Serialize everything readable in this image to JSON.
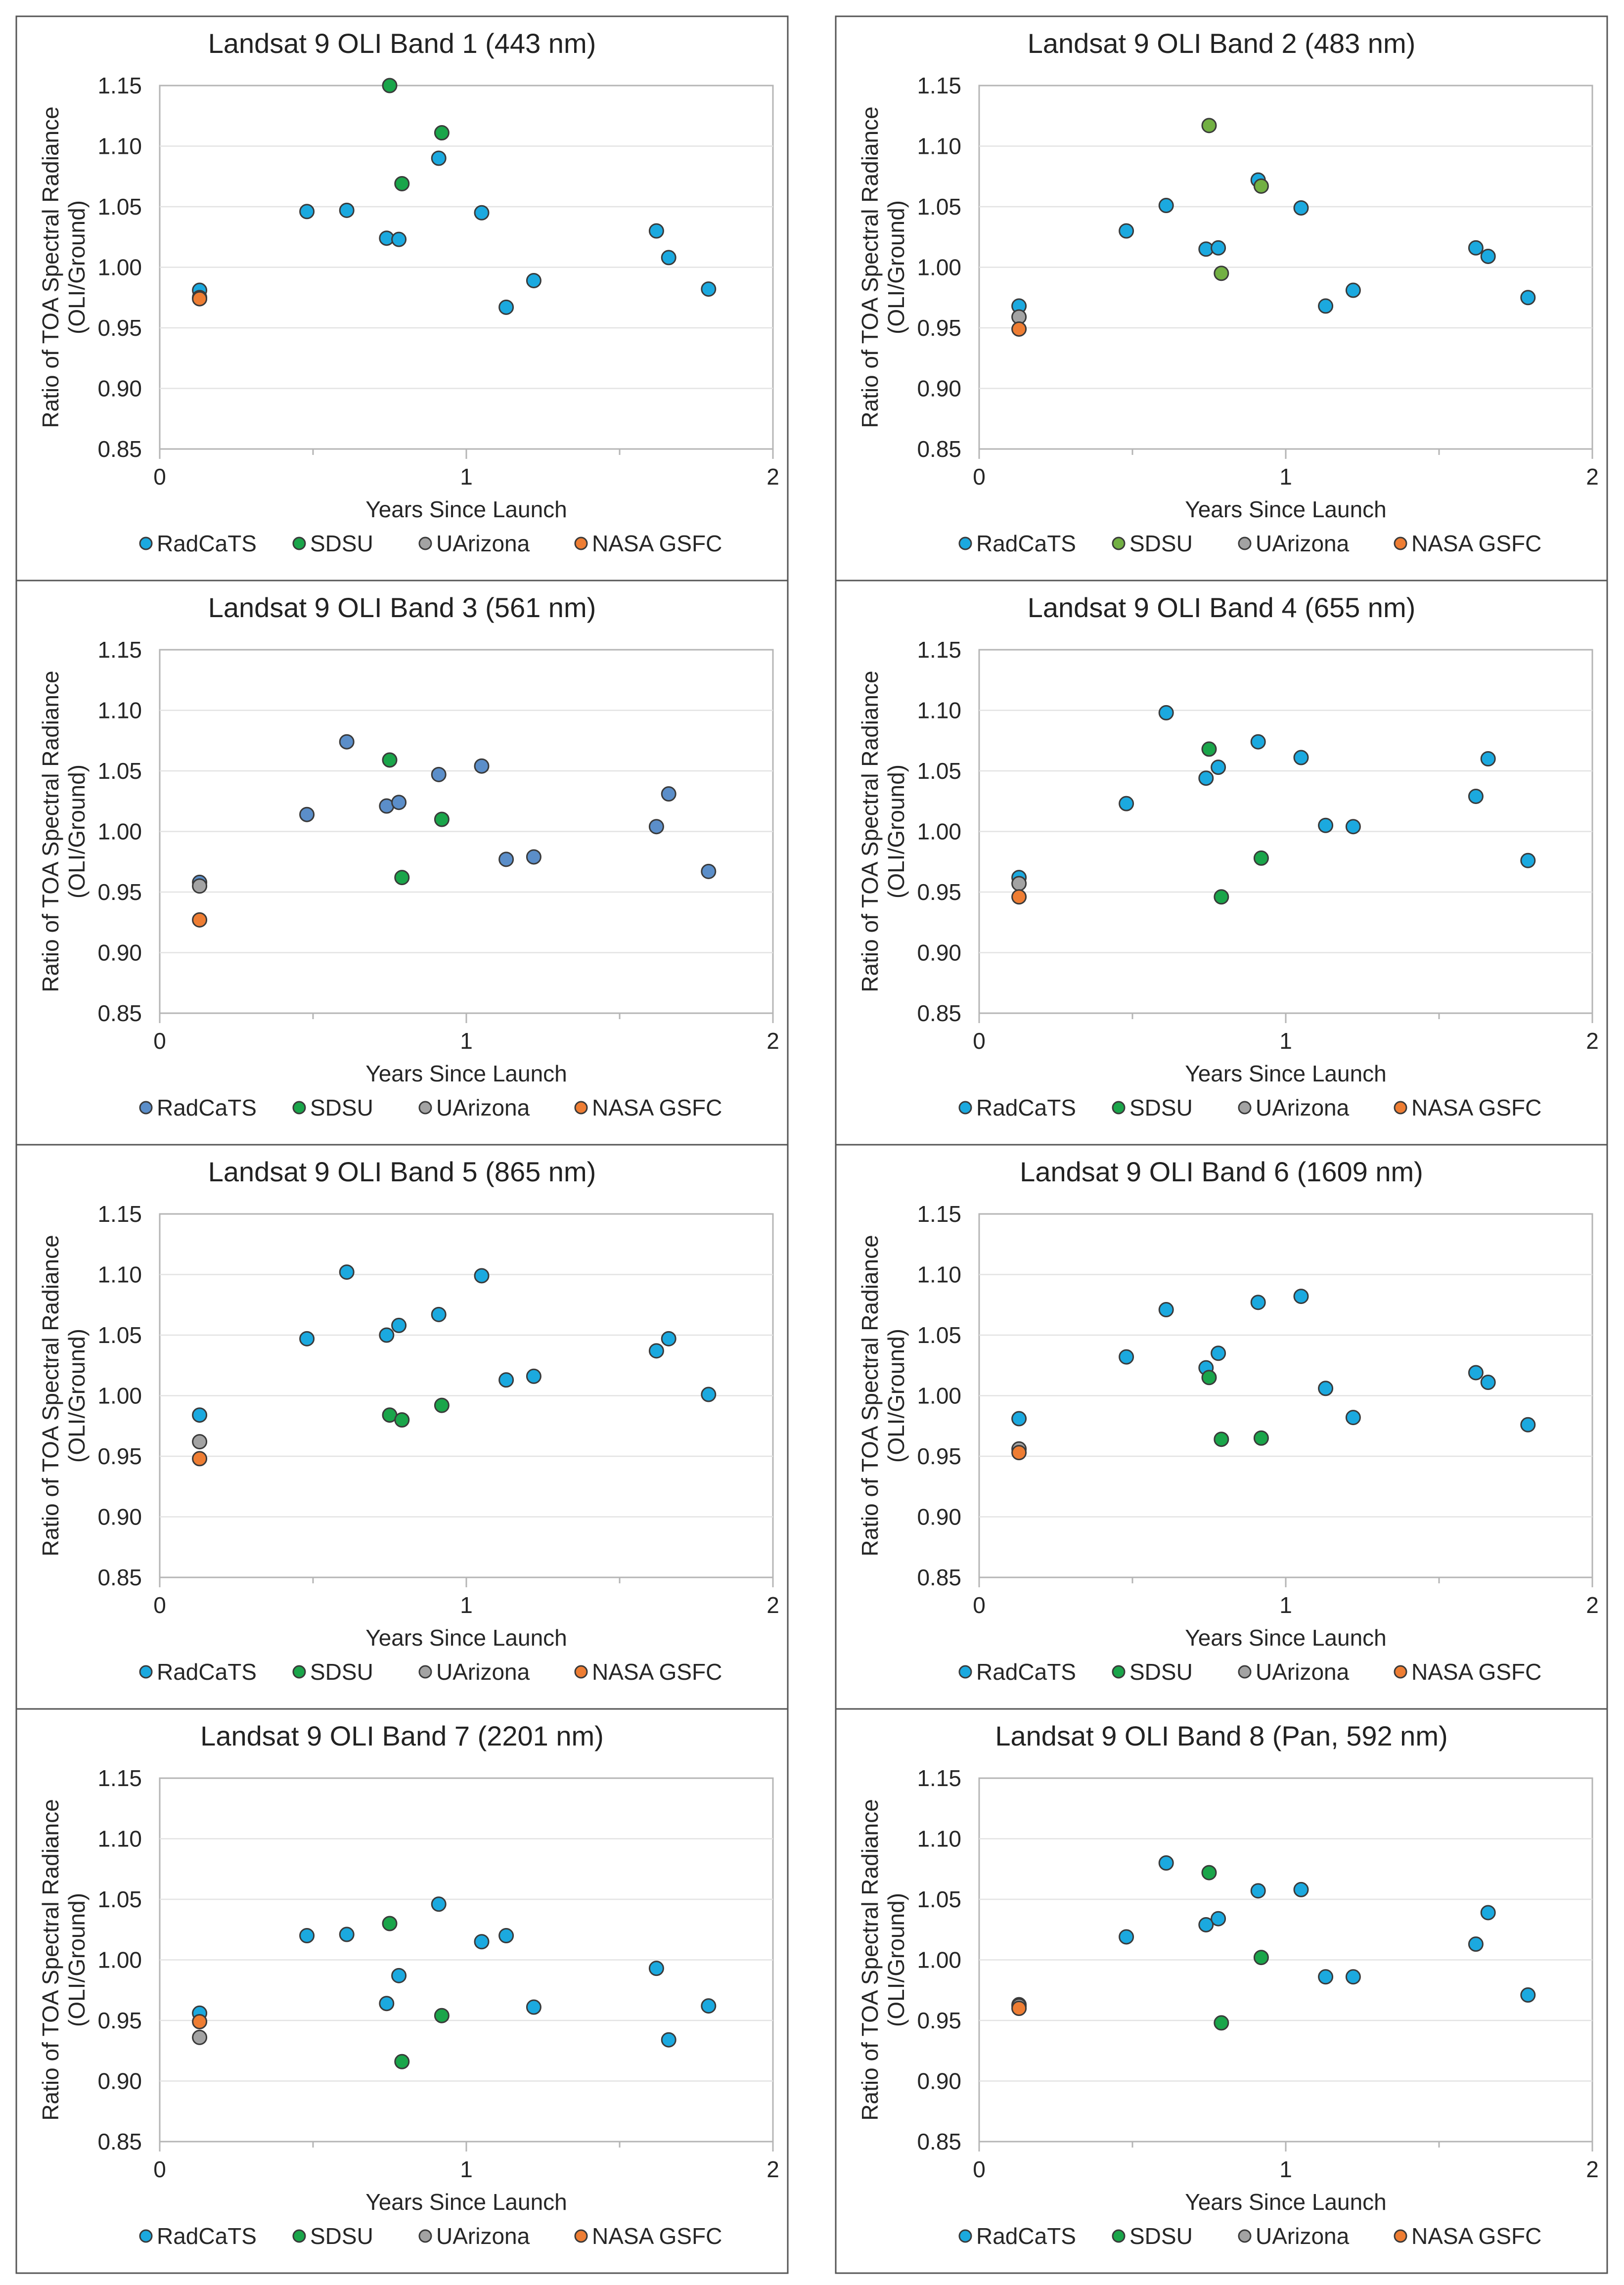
{
  "colors": {
    "RadCaTS": "#1ba9df",
    "RadCaTS_band3": "#5b8ec9",
    "SDSU": "#1aa54a",
    "SDSU_band2": "#72b043",
    "UArizona": "#a3a3a3",
    "NASA GSFC": "#ee7d33"
  },
  "chart_data": [
    {
      "type": "scatter",
      "title": "Landsat 9 OLI Band 1 (443 nm)",
      "xlabel": "Years Since Launch",
      "ylabel": [
        "Ratio of TOA Spectral Radiance",
        "(OLI/Ground)"
      ],
      "xlim": [
        0,
        2
      ],
      "ylim": [
        0.85,
        1.15
      ],
      "x_ticks": [
        "0",
        "1",
        "2"
      ],
      "y_ticks": [
        "0.85",
        "0.90",
        "0.95",
        "1.00",
        "1.05",
        "1.10",
        "1.15"
      ],
      "grid": "horizontal",
      "legend_position": "bottom",
      "series": [
        {
          "name": "RadCaTS",
          "points": [
            [
              0.13,
              0.981
            ],
            [
              0.48,
              1.046
            ],
            [
              0.61,
              1.047
            ],
            [
              0.74,
              1.024
            ],
            [
              0.78,
              1.023
            ],
            [
              0.91,
              1.09
            ],
            [
              1.05,
              1.045
            ],
            [
              1.13,
              0.967
            ],
            [
              1.22,
              0.989
            ],
            [
              1.62,
              1.03
            ],
            [
              1.66,
              1.008
            ],
            [
              1.79,
              0.982
            ]
          ]
        },
        {
          "name": "SDSU",
          "points": [
            [
              0.75,
              1.15
            ],
            [
              0.79,
              1.069
            ],
            [
              0.92,
              1.111
            ]
          ]
        },
        {
          "name": "UArizona",
          "points": [
            [
              0.13,
              0.975
            ]
          ]
        },
        {
          "name": "NASA GSFC",
          "points": [
            [
              0.13,
              0.974
            ]
          ]
        }
      ]
    },
    {
      "type": "scatter",
      "title": "Landsat 9 OLI Band 2 (483 nm)",
      "xlabel": "Years Since Launch",
      "ylabel": [
        "Ratio of TOA Spectral Radiance",
        "(OLI/Ground)"
      ],
      "xlim": [
        0,
        2
      ],
      "ylim": [
        0.85,
        1.15
      ],
      "x_ticks": [
        "0",
        "1",
        "2"
      ],
      "y_ticks": [
        "0.85",
        "0.90",
        "0.95",
        "1.00",
        "1.05",
        "1.10",
        "1.15"
      ],
      "grid": "horizontal",
      "legend_position": "bottom",
      "series": [
        {
          "name": "RadCaTS",
          "points": [
            [
              0.13,
              0.968
            ],
            [
              0.48,
              1.03
            ],
            [
              0.61,
              1.051
            ],
            [
              0.74,
              1.015
            ],
            [
              0.78,
              1.016
            ],
            [
              0.91,
              1.072
            ],
            [
              1.05,
              1.049
            ],
            [
              1.13,
              0.968
            ],
            [
              1.22,
              0.981
            ],
            [
              1.62,
              1.016
            ],
            [
              1.66,
              1.009
            ],
            [
              1.79,
              0.975
            ]
          ]
        },
        {
          "name": "SDSU",
          "color": "SDSU_band2",
          "points": [
            [
              0.75,
              1.117
            ],
            [
              0.79,
              0.995
            ],
            [
              0.92,
              1.067
            ]
          ]
        },
        {
          "name": "UArizona",
          "points": [
            [
              0.13,
              0.959
            ]
          ]
        },
        {
          "name": "NASA GSFC",
          "points": [
            [
              0.13,
              0.949
            ]
          ]
        }
      ]
    },
    {
      "type": "scatter",
      "title": "Landsat 9 OLI Band 3 (561 nm)",
      "xlabel": "Years Since Launch",
      "ylabel": [
        "Ratio of TOA Spectral Radiance",
        "(OLI/Ground)"
      ],
      "xlim": [
        0,
        2
      ],
      "ylim": [
        0.85,
        1.15
      ],
      "x_ticks": [
        "0",
        "1",
        "2"
      ],
      "y_ticks": [
        "0.85",
        "0.90",
        "0.95",
        "1.00",
        "1.05",
        "1.10",
        "1.15"
      ],
      "grid": "horizontal",
      "legend_position": "bottom",
      "series": [
        {
          "name": "RadCaTS",
          "color": "RadCaTS_band3",
          "points": [
            [
              0.13,
              0.958
            ],
            [
              0.48,
              1.014
            ],
            [
              0.61,
              1.074
            ],
            [
              0.74,
              1.021
            ],
            [
              0.78,
              1.024
            ],
            [
              0.91,
              1.047
            ],
            [
              1.05,
              1.054
            ],
            [
              1.13,
              0.977
            ],
            [
              1.22,
              0.979
            ],
            [
              1.62,
              1.004
            ],
            [
              1.66,
              1.031
            ],
            [
              1.79,
              0.967
            ]
          ]
        },
        {
          "name": "SDSU",
          "points": [
            [
              0.75,
              1.059
            ],
            [
              0.79,
              0.962
            ],
            [
              0.92,
              1.01
            ]
          ]
        },
        {
          "name": "UArizona",
          "points": [
            [
              0.13,
              0.955
            ]
          ]
        },
        {
          "name": "NASA GSFC",
          "points": [
            [
              0.13,
              0.927
            ]
          ]
        }
      ]
    },
    {
      "type": "scatter",
      "title": "Landsat 9 OLI Band 4 (655 nm)",
      "xlabel": "Years Since Launch",
      "ylabel": [
        "Ratio of TOA Spectral Radiance",
        "(OLI/Ground)"
      ],
      "xlim": [
        0,
        2
      ],
      "ylim": [
        0.85,
        1.15
      ],
      "x_ticks": [
        "0",
        "1",
        "2"
      ],
      "y_ticks": [
        "0.85",
        "0.90",
        "0.95",
        "1.00",
        "1.05",
        "1.10",
        "1.15"
      ],
      "grid": "horizontal",
      "legend_position": "bottom",
      "series": [
        {
          "name": "RadCaTS",
          "points": [
            [
              0.13,
              0.962
            ],
            [
              0.48,
              1.023
            ],
            [
              0.61,
              1.098
            ],
            [
              0.74,
              1.044
            ],
            [
              0.78,
              1.053
            ],
            [
              0.91,
              1.074
            ],
            [
              1.05,
              1.061
            ],
            [
              1.13,
              1.005
            ],
            [
              1.22,
              1.004
            ],
            [
              1.62,
              1.029
            ],
            [
              1.66,
              1.06
            ],
            [
              1.79,
              0.976
            ]
          ]
        },
        {
          "name": "SDSU",
          "points": [
            [
              0.75,
              1.068
            ],
            [
              0.79,
              0.946
            ],
            [
              0.92,
              0.978
            ]
          ]
        },
        {
          "name": "UArizona",
          "points": [
            [
              0.13,
              0.957
            ]
          ]
        },
        {
          "name": "NASA GSFC",
          "points": [
            [
              0.13,
              0.946
            ]
          ]
        }
      ]
    },
    {
      "type": "scatter",
      "title": "Landsat 9 OLI Band 5 (865 nm)",
      "xlabel": "Years Since Launch",
      "ylabel": [
        "Ratio of TOA Spectral Radiance",
        "(OLI/Ground)"
      ],
      "xlim": [
        0,
        2
      ],
      "ylim": [
        0.85,
        1.15
      ],
      "x_ticks": [
        "0",
        "1",
        "2"
      ],
      "y_ticks": [
        "0.85",
        "0.90",
        "0.95",
        "1.00",
        "1.05",
        "1.10",
        "1.15"
      ],
      "grid": "horizontal",
      "legend_position": "bottom",
      "series": [
        {
          "name": "RadCaTS",
          "points": [
            [
              0.13,
              0.984
            ],
            [
              0.48,
              1.047
            ],
            [
              0.61,
              1.102
            ],
            [
              0.74,
              1.05
            ],
            [
              0.78,
              1.058
            ],
            [
              0.91,
              1.067
            ],
            [
              1.05,
              1.099
            ],
            [
              1.13,
              1.013
            ],
            [
              1.22,
              1.016
            ],
            [
              1.62,
              1.037
            ],
            [
              1.66,
              1.047
            ],
            [
              1.79,
              1.001
            ]
          ]
        },
        {
          "name": "SDSU",
          "points": [
            [
              0.75,
              0.984
            ],
            [
              0.79,
              0.98
            ],
            [
              0.92,
              0.992
            ]
          ]
        },
        {
          "name": "UArizona",
          "points": [
            [
              0.13,
              0.962
            ]
          ]
        },
        {
          "name": "NASA GSFC",
          "points": [
            [
              0.13,
              0.948
            ]
          ]
        }
      ]
    },
    {
      "type": "scatter",
      "title": "Landsat 9 OLI Band 6 (1609 nm)",
      "xlabel": "Years Since Launch",
      "ylabel": [
        "Ratio of TOA Spectral Radiance",
        "(OLI/Ground)"
      ],
      "xlim": [
        0,
        2
      ],
      "ylim": [
        0.85,
        1.15
      ],
      "x_ticks": [
        "0",
        "1",
        "2"
      ],
      "y_ticks": [
        "0.85",
        "0.90",
        "0.95",
        "1.00",
        "1.05",
        "1.10",
        "1.15"
      ],
      "grid": "horizontal",
      "legend_position": "bottom",
      "series": [
        {
          "name": "RadCaTS",
          "points": [
            [
              0.13,
              0.981
            ],
            [
              0.48,
              1.032
            ],
            [
              0.61,
              1.071
            ],
            [
              0.74,
              1.023
            ],
            [
              0.78,
              1.035
            ],
            [
              0.91,
              1.077
            ],
            [
              1.05,
              1.082
            ],
            [
              1.13,
              1.006
            ],
            [
              1.22,
              0.982
            ],
            [
              1.62,
              1.019
            ],
            [
              1.66,
              1.011
            ],
            [
              1.79,
              0.976
            ]
          ]
        },
        {
          "name": "SDSU",
          "points": [
            [
              0.75,
              1.015
            ],
            [
              0.79,
              0.964
            ],
            [
              0.92,
              0.965
            ]
          ]
        },
        {
          "name": "UArizona",
          "points": [
            [
              0.13,
              0.956
            ]
          ]
        },
        {
          "name": "NASA GSFC",
          "points": [
            [
              0.13,
              0.953
            ]
          ]
        }
      ]
    },
    {
      "type": "scatter",
      "title": "Landsat 9 OLI Band 7 (2201 nm)",
      "xlabel": "Years Since Launch",
      "ylabel": [
        "Ratio of TOA Spectral Radiance",
        "(OLI/Ground)"
      ],
      "xlim": [
        0,
        2
      ],
      "ylim": [
        0.85,
        1.15
      ],
      "x_ticks": [
        "0",
        "1",
        "2"
      ],
      "y_ticks": [
        "0.85",
        "0.90",
        "0.95",
        "1.00",
        "1.05",
        "1.10",
        "1.15"
      ],
      "grid": "horizontal",
      "legend_position": "bottom",
      "series": [
        {
          "name": "RadCaTS",
          "points": [
            [
              0.13,
              0.956
            ],
            [
              0.48,
              1.02
            ],
            [
              0.61,
              1.021
            ],
            [
              0.74,
              0.964
            ],
            [
              0.78,
              0.987
            ],
            [
              0.91,
              1.046
            ],
            [
              1.05,
              1.015
            ],
            [
              1.13,
              1.02
            ],
            [
              1.22,
              0.961
            ],
            [
              1.62,
              0.993
            ],
            [
              1.66,
              0.934
            ],
            [
              1.79,
              0.962
            ]
          ]
        },
        {
          "name": "SDSU",
          "points": [
            [
              0.75,
              1.03
            ],
            [
              0.79,
              0.916
            ],
            [
              0.92,
              0.954
            ]
          ]
        },
        {
          "name": "UArizona",
          "points": [
            [
              0.13,
              0.936
            ]
          ]
        },
        {
          "name": "NASA GSFC",
          "points": [
            [
              0.13,
              0.949
            ]
          ]
        }
      ]
    },
    {
      "type": "scatter",
      "title": "Landsat 9 OLI Band 8 (Pan, 592 nm)",
      "xlabel": "Years Since Launch",
      "ylabel": [
        "Ratio of TOA Spectral Radiance",
        "(OLI/Ground)"
      ],
      "xlim": [
        0,
        2
      ],
      "ylim": [
        0.85,
        1.15
      ],
      "x_ticks": [
        "0",
        "1",
        "2"
      ],
      "y_ticks": [
        "0.85",
        "0.90",
        "0.95",
        "1.00",
        "1.05",
        "1.10",
        "1.15"
      ],
      "grid": "horizontal",
      "legend_position": "bottom",
      "series": [
        {
          "name": "RadCaTS",
          "points": [
            [
              0.61,
              1.08
            ],
            [
              0.48,
              1.019
            ],
            [
              0.74,
              1.029
            ],
            [
              0.78,
              1.034
            ],
            [
              0.91,
              1.057
            ],
            [
              1.05,
              1.058
            ],
            [
              1.13,
              0.986
            ],
            [
              1.22,
              0.986
            ],
            [
              1.62,
              1.013
            ],
            [
              1.66,
              1.039
            ],
            [
              1.79,
              0.971
            ]
          ]
        },
        {
          "name": "SDSU",
          "points": [
            [
              0.13,
              0.963
            ],
            [
              0.75,
              1.072
            ],
            [
              0.79,
              0.948
            ],
            [
              0.92,
              1.002
            ]
          ]
        },
        {
          "name": "UArizona",
          "points": [
            [
              0.13,
              0.962
            ]
          ]
        },
        {
          "name": "NASA GSFC",
          "points": [
            [
              0.13,
              0.96
            ]
          ]
        }
      ]
    }
  ]
}
